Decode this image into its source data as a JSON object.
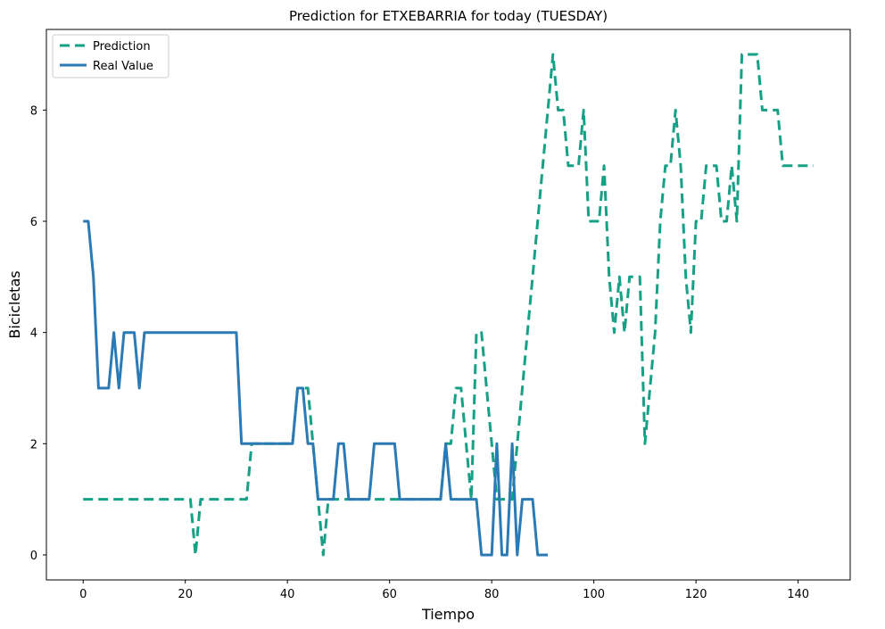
{
  "chart_data": {
    "type": "line",
    "title": "Prediction for ETXEBARRIA for today (TUESDAY)",
    "xlabel": "Tiempo",
    "ylabel": "Bicicletas",
    "xlim": [
      -7.2,
      150.2
    ],
    "ylim": [
      -0.45,
      9.45
    ],
    "xticks": [
      0,
      20,
      40,
      60,
      80,
      100,
      120,
      140
    ],
    "yticks": [
      0,
      2,
      4,
      6,
      8
    ],
    "grid": false,
    "legend_position": "top-left",
    "series": [
      {
        "name": "Prediction",
        "color": "#16a085",
        "style": "dashed",
        "points": [
          [
            0,
            1
          ],
          [
            21,
            1
          ],
          [
            22,
            0
          ],
          [
            23,
            1
          ],
          [
            32,
            1
          ],
          [
            33,
            2
          ],
          [
            41,
            2
          ],
          [
            42,
            3
          ],
          [
            44,
            3
          ],
          [
            45,
            2
          ],
          [
            46,
            1
          ],
          [
            47,
            0
          ],
          [
            48,
            1
          ],
          [
            70,
            1
          ],
          [
            71,
            2
          ],
          [
            72,
            2
          ],
          [
            73,
            3
          ],
          [
            74,
            3
          ],
          [
            75,
            2
          ],
          [
            76,
            1
          ],
          [
            77,
            4
          ],
          [
            78,
            4
          ],
          [
            79,
            3
          ],
          [
            80,
            2
          ],
          [
            81,
            1
          ],
          [
            84,
            1
          ],
          [
            85,
            2
          ],
          [
            86,
            3
          ],
          [
            87,
            4
          ],
          [
            88,
            5
          ],
          [
            89,
            6
          ],
          [
            90,
            7
          ],
          [
            91,
            8
          ],
          [
            92,
            9
          ],
          [
            93,
            8
          ],
          [
            94,
            8
          ],
          [
            95,
            7
          ],
          [
            97,
            7
          ],
          [
            98,
            8
          ],
          [
            99,
            6
          ],
          [
            101,
            6
          ],
          [
            102,
            7
          ],
          [
            103,
            5
          ],
          [
            104,
            4
          ],
          [
            105,
            5
          ],
          [
            106,
            4
          ],
          [
            107,
            5
          ],
          [
            109,
            5
          ],
          [
            110,
            2
          ],
          [
            111,
            3
          ],
          [
            112,
            4
          ],
          [
            113,
            6
          ],
          [
            114,
            7
          ],
          [
            115,
            7
          ],
          [
            116,
            8
          ],
          [
            117,
            7
          ],
          [
            118,
            5
          ],
          [
            119,
            4
          ],
          [
            120,
            6
          ],
          [
            121,
            6
          ],
          [
            122,
            7
          ],
          [
            124,
            7
          ],
          [
            125,
            6
          ],
          [
            126,
            6
          ],
          [
            127,
            7
          ],
          [
            128,
            6
          ],
          [
            129,
            9
          ],
          [
            132,
            9
          ],
          [
            133,
            8
          ],
          [
            136,
            8
          ],
          [
            137,
            7
          ],
          [
            143,
            7
          ]
        ]
      },
      {
        "name": "Real Value",
        "color": "#2a7ab5",
        "style": "solid",
        "points": [
          [
            0,
            6
          ],
          [
            1,
            6
          ],
          [
            2,
            5
          ],
          [
            3,
            3
          ],
          [
            5,
            3
          ],
          [
            6,
            4
          ],
          [
            7,
            3
          ],
          [
            8,
            4
          ],
          [
            10,
            4
          ],
          [
            11,
            3
          ],
          [
            12,
            4
          ],
          [
            30,
            4
          ],
          [
            31,
            2
          ],
          [
            41,
            2
          ],
          [
            42,
            3
          ],
          [
            43,
            3
          ],
          [
            44,
            2
          ],
          [
            45,
            2
          ],
          [
            46,
            1
          ],
          [
            49,
            1
          ],
          [
            50,
            2
          ],
          [
            51,
            2
          ],
          [
            52,
            1
          ],
          [
            56,
            1
          ],
          [
            57,
            2
          ],
          [
            61,
            2
          ],
          [
            62,
            1
          ],
          [
            70,
            1
          ],
          [
            71,
            2
          ],
          [
            72,
            1
          ],
          [
            77,
            1
          ],
          [
            78,
            0
          ],
          [
            80,
            0
          ],
          [
            81,
            2
          ],
          [
            82,
            0
          ],
          [
            83,
            0
          ],
          [
            84,
            2
          ],
          [
            85,
            0
          ],
          [
            86,
            1
          ],
          [
            88,
            1
          ],
          [
            89,
            0
          ],
          [
            91,
            0
          ]
        ]
      }
    ]
  }
}
